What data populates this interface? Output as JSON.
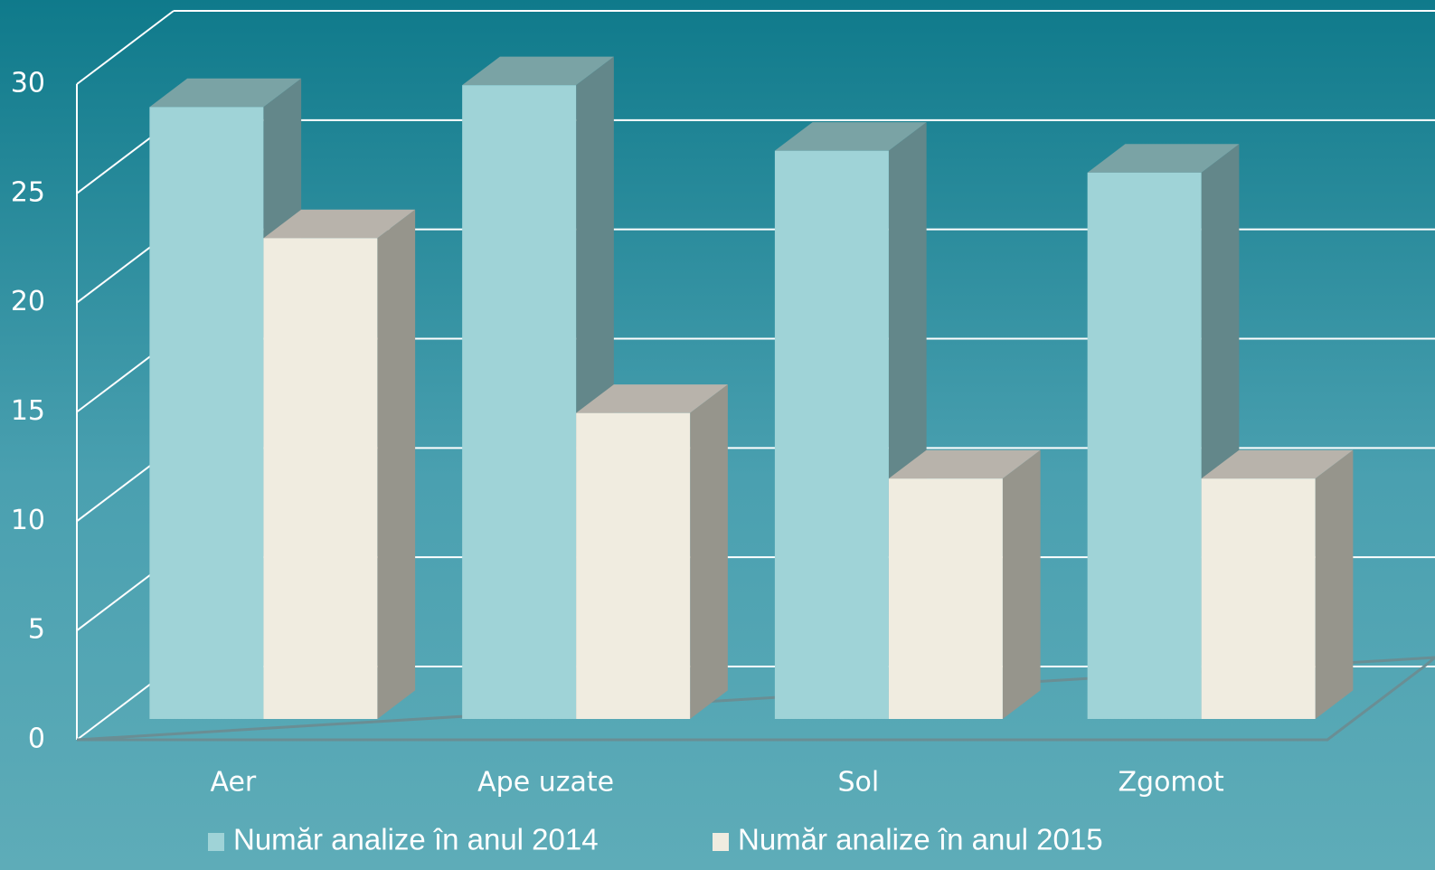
{
  "chart_data": {
    "type": "bar3d",
    "categories": [
      "Aer",
      "Ape uzate",
      "Sol",
      "Zgomot"
    ],
    "series": [
      {
        "name": "Număr analize în anul 2014",
        "color": "#9fd3d7",
        "values": [
          28,
          29,
          26,
          25
        ]
      },
      {
        "name": "Număr analize în anul 2015",
        "color": "#f0ece0",
        "values": [
          22,
          14,
          11,
          11
        ]
      }
    ],
    "ylim": [
      0,
      30
    ],
    "yticks": [
      0,
      5,
      10,
      15,
      20,
      25,
      30
    ],
    "grid": true,
    "legend": "bottom"
  }
}
